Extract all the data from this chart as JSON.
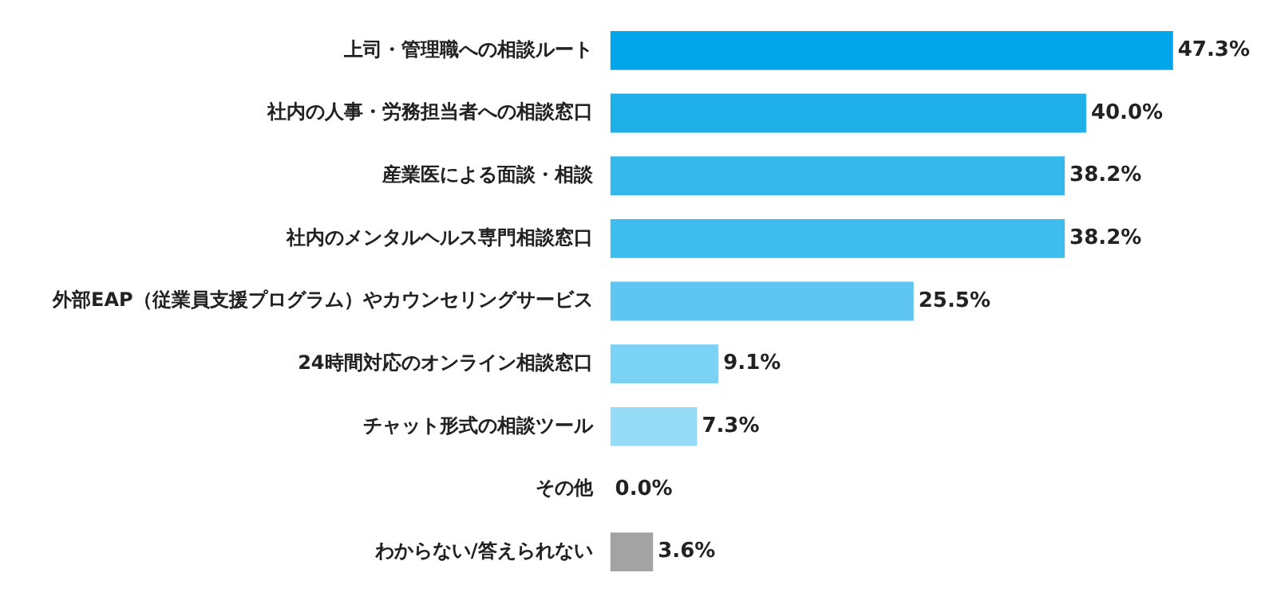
{
  "chart_data": {
    "type": "bar",
    "orientation": "horizontal",
    "categories": [
      "上司・管理職への相談ルート",
      "社内の人事・労務担当者への相談窓口",
      "産業医による面談・相談",
      "社内のメンタルヘルス専門相談窓口",
      "外部EAP（従業員支援プログラム）やカウンセリングサービス",
      "24時間対応のオンライン相談窓口",
      "チャット形式の相談ツール",
      "その他",
      "わからない/答えられない"
    ],
    "values": [
      47.3,
      40.0,
      38.2,
      38.2,
      25.5,
      9.1,
      7.3,
      0.0,
      3.6
    ],
    "colors": [
      "#00a6e9",
      "#1fb0ea",
      "#35b8ec",
      "#3fbcee",
      "#5ec6f0",
      "#7ad3f5",
      "#96dcf6",
      "#b0e5f8",
      "#a3a3a3"
    ],
    "value_labels": [
      "47.3%",
      "40.0%",
      "38.2%",
      "38.2%",
      "25.5%",
      "9.1%",
      "7.3%",
      "0.0%",
      "3.6%"
    ],
    "legend": false
  }
}
